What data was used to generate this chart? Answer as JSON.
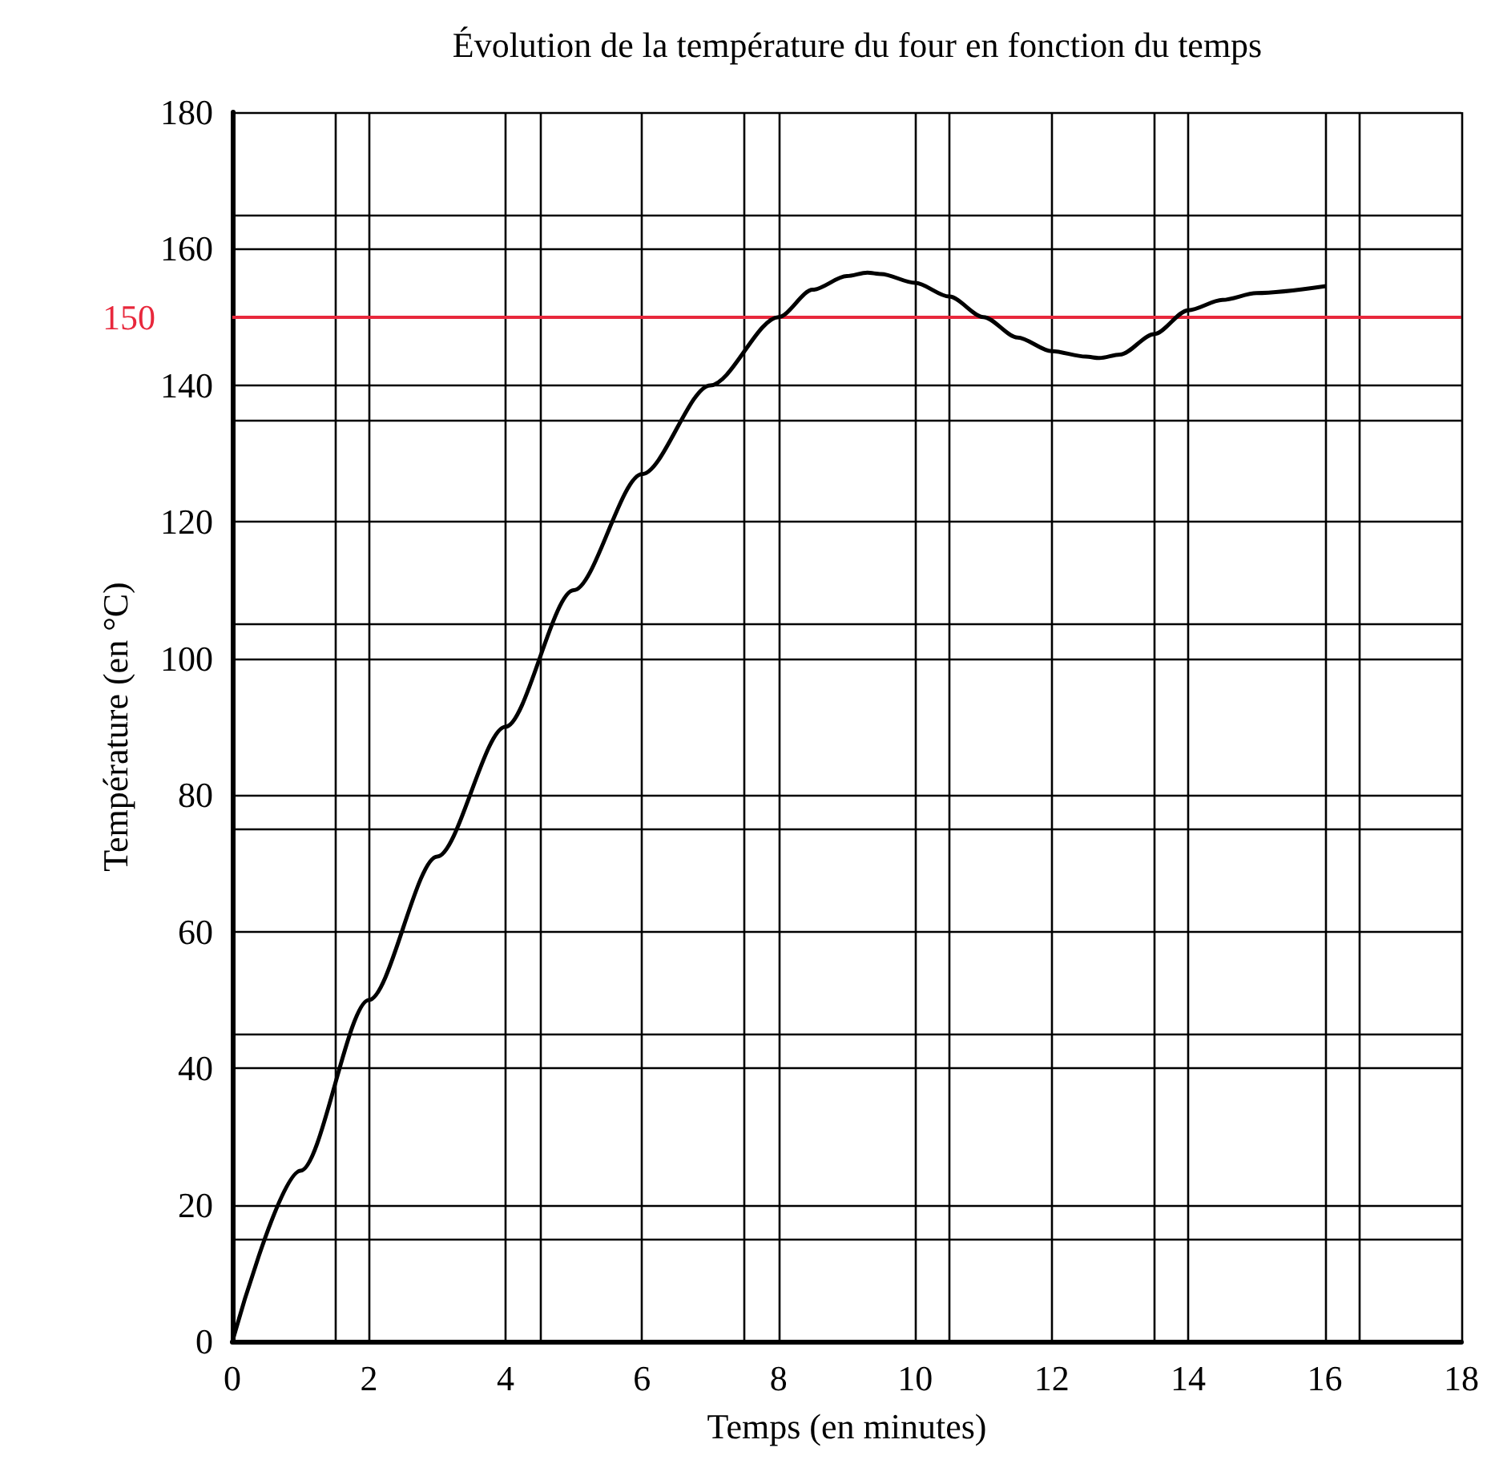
{
  "chart_data": {
    "type": "line",
    "title": "Évolution de la température du four en fonction du temps",
    "xlabel": "Temps (en minutes)",
    "ylabel": "Température (en °C)",
    "x": [
      0,
      1,
      2,
      3,
      4,
      5,
      6,
      7,
      8,
      8.5,
      9,
      9.3,
      9.5,
      10,
      10.5,
      11,
      11.5,
      12,
      12.5,
      12.7,
      13,
      13.5,
      14,
      14.5,
      15,
      16
    ],
    "series": [
      {
        "color": "#000000",
        "values": [
          0,
          25,
          50,
          71,
          90,
          110,
          127,
          140,
          150,
          154,
          156,
          156.5,
          156.3,
          155,
          153,
          150,
          147,
          145,
          144.2,
          144,
          144.5,
          147.5,
          151,
          152.5,
          153.5,
          154.5
        ]
      }
    ],
    "xlim": [
      0,
      18
    ],
    "xticks": [
      0,
      2,
      4,
      6,
      8,
      10,
      12,
      14,
      16,
      18
    ],
    "ylim": [
      0,
      180
    ],
    "yticks": [
      0,
      20,
      40,
      60,
      80,
      100,
      120,
      140,
      160,
      180
    ],
    "grid": true,
    "marker": "none",
    "line_style": "solid",
    "ref_lines": [
      {
        "axis": "y",
        "value": 150,
        "label": "150",
        "color": "#e8283c"
      }
    ]
  }
}
